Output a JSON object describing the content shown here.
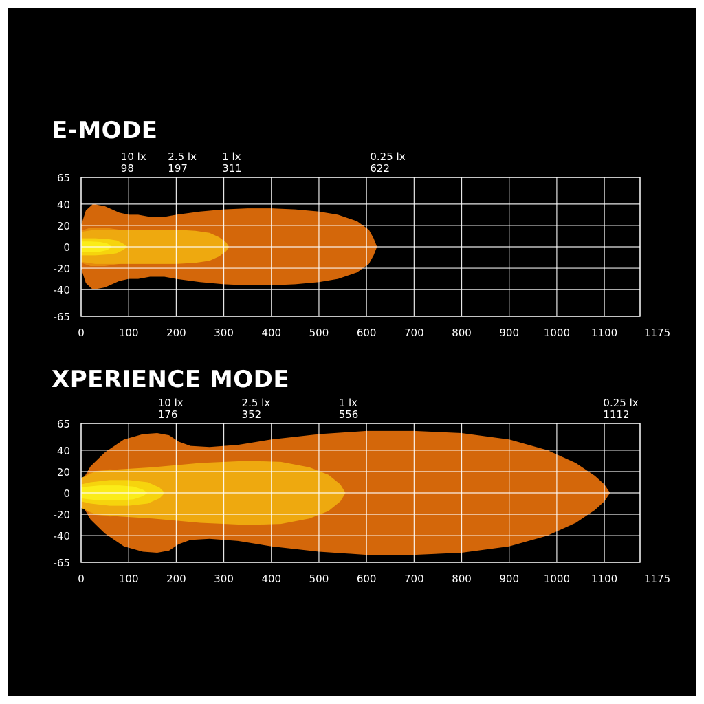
{
  "chart_data": [
    {
      "type": "area",
      "title": "E-MODE",
      "xlim": [
        0,
        1175
      ],
      "ylim": [
        -65,
        65
      ],
      "x_ticks": [
        0,
        100,
        200,
        300,
        400,
        500,
        600,
        700,
        800,
        900,
        1000,
        1100,
        1175
      ],
      "y_ticks": [
        65,
        40,
        20,
        0,
        -20,
        -40,
        -65
      ],
      "grid": true,
      "lux_labels": [
        {
          "lux": "10 lx",
          "distance": "98"
        },
        {
          "lux": "2.5 lx",
          "distance": "197"
        },
        {
          "lux": "1 lx",
          "distance": "311"
        },
        {
          "lux": "0.25 lx",
          "distance": "622"
        }
      ],
      "series": [
        {
          "color": "#d4670a",
          "x": [
            0,
            10,
            25,
            50,
            80,
            100,
            120,
            145,
            175,
            200,
            250,
            300,
            350,
            400,
            450,
            500,
            540,
            580,
            605,
            615,
            622
          ],
          "y": [
            20,
            34,
            40,
            38,
            32,
            30,
            30,
            28,
            28,
            30,
            33,
            35,
            36,
            36,
            35,
            33,
            30,
            24,
            16,
            8,
            0
          ]
        },
        {
          "color": "#e68a0d",
          "x": [
            0,
            20,
            50,
            80,
            100,
            120,
            150,
            170,
            197
          ],
          "y": [
            15,
            18,
            18,
            16,
            14,
            12,
            9,
            5,
            0
          ]
        },
        {
          "color": "#eea90f",
          "x": [
            0,
            30,
            80,
            150,
            200,
            240,
            270,
            290,
            305,
            311
          ],
          "y": [
            14,
            16,
            16,
            16,
            16,
            15,
            13,
            9,
            4,
            0
          ]
        },
        {
          "color": "#f6d40d",
          "x": [
            0,
            30,
            60,
            75,
            88,
            98
          ],
          "y": [
            8,
            8,
            7,
            6,
            3,
            0
          ]
        },
        {
          "color": "#fbec18",
          "x": [
            0,
            20,
            40,
            55,
            65
          ],
          "y": [
            5,
            5,
            4.5,
            3,
            0
          ]
        }
      ]
    },
    {
      "type": "area",
      "title": "XPERIENCE MODE",
      "xlim": [
        0,
        1175
      ],
      "ylim": [
        -65,
        65
      ],
      "x_ticks": [
        0,
        100,
        200,
        300,
        400,
        500,
        600,
        700,
        800,
        900,
        1000,
        1100,
        1175
      ],
      "y_ticks": [
        65,
        40,
        20,
        0,
        -20,
        -40,
        -65
      ],
      "grid": true,
      "lux_labels": [
        {
          "lux": "10 lx",
          "distance": "176"
        },
        {
          "lux": "2.5 lx",
          "distance": "352"
        },
        {
          "lux": "1 lx",
          "distance": "556"
        },
        {
          "lux": "0.25 lx",
          "distance": "1112"
        }
      ],
      "series": [
        {
          "color": "#d4670a",
          "x": [
            0,
            20,
            50,
            90,
            130,
            160,
            185,
            205,
            230,
            270,
            330,
            400,
            500,
            600,
            700,
            800,
            900,
            980,
            1040,
            1080,
            1100,
            1112
          ],
          "y": [
            10,
            25,
            38,
            50,
            55,
            56,
            54,
            48,
            44,
            43,
            45,
            50,
            55,
            58,
            58,
            56,
            50,
            40,
            28,
            16,
            8,
            0
          ]
        },
        {
          "color": "#e68a0d",
          "x": [
            0,
            20,
            60,
            150,
            250,
            300,
            340,
            352
          ],
          "y": [
            12,
            20,
            22,
            20,
            16,
            12,
            6,
            0
          ]
        },
        {
          "color": "#eea90f",
          "x": [
            0,
            30,
            80,
            150,
            250,
            350,
            420,
            480,
            520,
            545,
            556
          ],
          "y": [
            14,
            20,
            22,
            24,
            28,
            30,
            29,
            24,
            17,
            8,
            0
          ]
        },
        {
          "color": "#f6d40d",
          "x": [
            0,
            20,
            60,
            100,
            140,
            165,
            176
          ],
          "y": [
            8,
            10,
            12,
            12,
            10,
            5,
            0
          ]
        },
        {
          "color": "#fbec18",
          "x": [
            0,
            15,
            40,
            80,
            110,
            130,
            140
          ],
          "y": [
            5,
            6,
            7,
            7,
            6,
            3,
            0
          ]
        }
      ]
    }
  ]
}
